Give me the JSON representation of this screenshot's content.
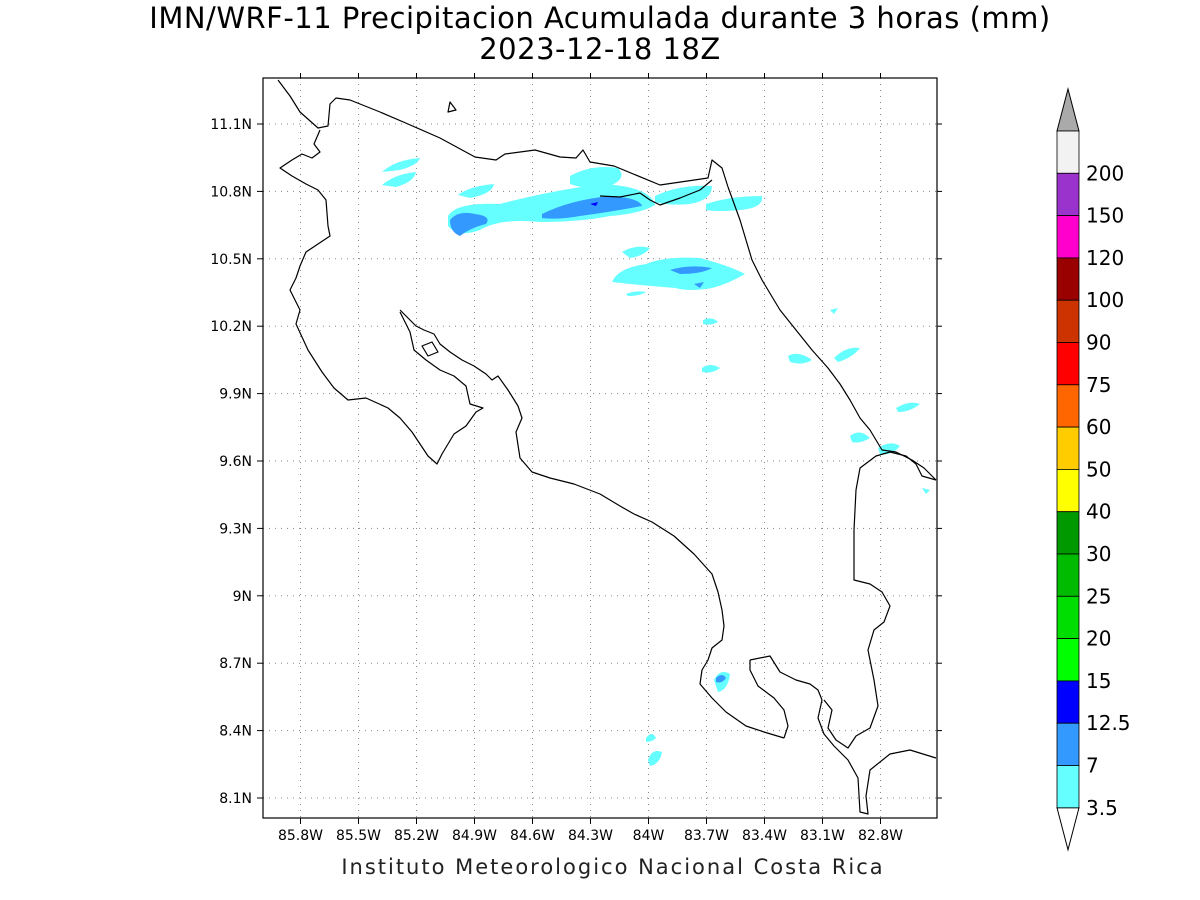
{
  "title": "IMN/WRF-11 Precipitacion Acumulada durante 3 horas (mm)",
  "subtitle": "2023-12-18 18Z",
  "footer": "Instituto Meteorologico Nacional Costa Rica",
  "map": {
    "lon_range": [
      -86.0,
      -83.0
    ],
    "lat_range": [
      8.0,
      11.3
    ],
    "lon_ticks": [
      {
        "value": -85.8,
        "label": "85.8W"
      },
      {
        "value": -85.5,
        "label": "85.5W"
      },
      {
        "value": -85.2,
        "label": "85.2W"
      },
      {
        "value": -84.9,
        "label": "84.9W"
      },
      {
        "value": -84.6,
        "label": "84.6W"
      },
      {
        "value": -84.3,
        "label": "84.3W"
      },
      {
        "value": -84.0,
        "label": "84W"
      },
      {
        "value": -83.7,
        "label": "83.7W"
      },
      {
        "value": -83.4,
        "label": "83.4W"
      },
      {
        "value": -83.1,
        "label": "83.1W"
      },
      {
        "value": -82.8,
        "label": "82.8W"
      }
    ],
    "lat_ticks": [
      {
        "value": 11.1,
        "label": "11.1N"
      },
      {
        "value": 10.8,
        "label": "10.8N"
      },
      {
        "value": 10.5,
        "label": "10.5N"
      },
      {
        "value": 10.2,
        "label": "10.2N"
      },
      {
        "value": 9.9,
        "label": "9.9N"
      },
      {
        "value": 9.6,
        "label": "9.6N"
      },
      {
        "value": 9.3,
        "label": "9.3N"
      },
      {
        "value": 9.0,
        "label": "9N"
      },
      {
        "value": 8.7,
        "label": "8.7N"
      },
      {
        "value": 8.4,
        "label": "8.4N"
      },
      {
        "value": 8.1,
        "label": "8.1N"
      }
    ],
    "grid": "dotted",
    "coastline_color": "#000000"
  },
  "colorbar": {
    "orientation": "vertical",
    "placement": "right",
    "levels": [
      {
        "label": "3.5",
        "color": "#66ffff"
      },
      {
        "label": "7",
        "color": "#3399ff"
      },
      {
        "label": "12.5",
        "color": "#0000ff"
      },
      {
        "label": "15",
        "color": "#00ff00"
      },
      {
        "label": "20",
        "color": "#00dd00"
      },
      {
        "label": "25",
        "color": "#00bb00"
      },
      {
        "label": "30",
        "color": "#009900"
      },
      {
        "label": "40",
        "color": "#ffff00"
      },
      {
        "label": "50",
        "color": "#ffcc00"
      },
      {
        "label": "60",
        "color": "#ff6600"
      },
      {
        "label": "75",
        "color": "#ff0000"
      },
      {
        "label": "90",
        "color": "#cc3300"
      },
      {
        "label": "100",
        "color": "#990000"
      },
      {
        "label": "120",
        "color": "#ff00cc"
      },
      {
        "label": "150",
        "color": "#9933cc"
      },
      {
        "label": "200",
        "color": "#f2f2f2"
      }
    ],
    "over_color": "#aaaaaa",
    "under_color": "#ffffff"
  },
  "precip_colors": {
    "light": "#66ffff",
    "moderate": "#3399ff",
    "heavy": "#0000ff"
  }
}
